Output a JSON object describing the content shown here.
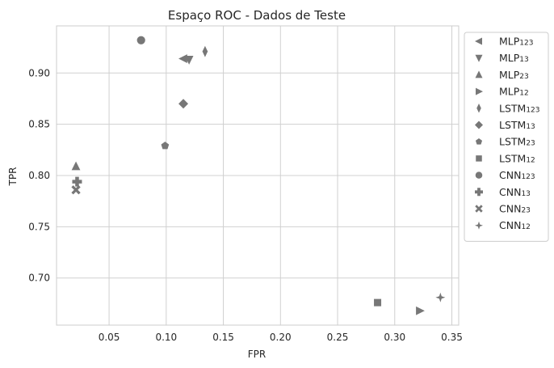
{
  "chart_data": {
    "type": "scatter",
    "title": "Espaço ROC - Dados de Teste",
    "xlabel": "FPR",
    "ylabel": "TPR",
    "xlim": [
      0.004,
      0.356
    ],
    "ylim": [
      0.654,
      0.946
    ],
    "xticks": [
      0.05,
      0.1,
      0.15,
      0.2,
      0.25,
      0.3,
      0.35
    ],
    "xtick_labels": [
      "0.05",
      "0.10",
      "0.15",
      "0.20",
      "0.25",
      "0.30",
      "0.35"
    ],
    "yticks": [
      0.7,
      0.75,
      0.8,
      0.85,
      0.9
    ],
    "ytick_labels": [
      "0.70",
      "0.75",
      "0.80",
      "0.85",
      "0.90"
    ],
    "grid": true,
    "legend_position": "outside-right",
    "marker_color": "#777777",
    "series": [
      {
        "base": "MLP",
        "sub": "123",
        "marker": "triangle-left",
        "x": 0.115,
        "y": 0.914
      },
      {
        "base": "MLP",
        "sub": "13",
        "marker": "triangle-down",
        "x": 0.12,
        "y": 0.913
      },
      {
        "base": "MLP",
        "sub": "23",
        "marker": "triangle-up",
        "x": 0.021,
        "y": 0.809
      },
      {
        "base": "MLP",
        "sub": "12",
        "marker": "triangle-right",
        "x": 0.322,
        "y": 0.668
      },
      {
        "base": "LSTM",
        "sub": "123",
        "marker": "thin-diamond",
        "x": 0.134,
        "y": 0.921
      },
      {
        "base": "LSTM",
        "sub": "13",
        "marker": "diamond",
        "x": 0.115,
        "y": 0.87
      },
      {
        "base": "LSTM",
        "sub": "23",
        "marker": "pentagon",
        "x": 0.099,
        "y": 0.829
      },
      {
        "base": "LSTM",
        "sub": "12",
        "marker": "square",
        "x": 0.285,
        "y": 0.676
      },
      {
        "base": "CNN",
        "sub": "123",
        "marker": "circle",
        "x": 0.078,
        "y": 0.932
      },
      {
        "base": "CNN",
        "sub": "13",
        "marker": "plus",
        "x": 0.022,
        "y": 0.794
      },
      {
        "base": "CNN",
        "sub": "23",
        "marker": "x",
        "x": 0.021,
        "y": 0.786
      },
      {
        "base": "CNN",
        "sub": "12",
        "marker": "star",
        "x": 0.34,
        "y": 0.681
      }
    ]
  }
}
